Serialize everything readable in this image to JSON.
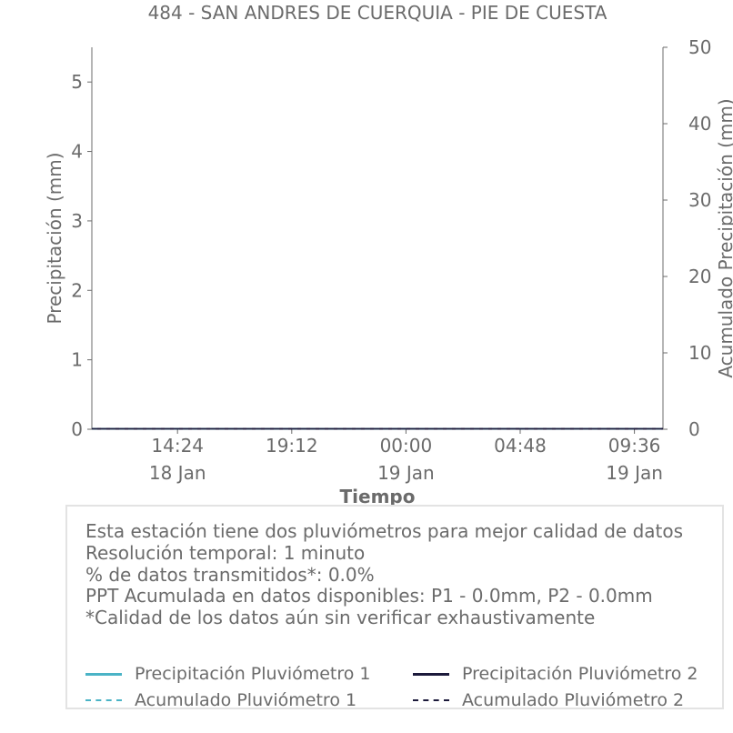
{
  "chart_data": {
    "type": "line",
    "title": "484 - SAN ANDRES DE CUERQUIA - PIE DE CUESTA",
    "xlabel": "Tiempo",
    "ylabel": "Precipitación (mm)",
    "y2label": "Acumulado Precipitación (mm)",
    "ylim": [
      0,
      5.5
    ],
    "y2lim": [
      0,
      50
    ],
    "yticks": [
      "0",
      "1",
      "2",
      "3",
      "4",
      "5"
    ],
    "y2ticks": [
      "0",
      "10",
      "20",
      "30",
      "40",
      "50"
    ],
    "xticks": [
      {
        "time": "14:24",
        "date": "18 Jan"
      },
      {
        "time": "19:12",
        "date": ""
      },
      {
        "time": "00:00",
        "date": "19 Jan"
      },
      {
        "time": "04:48",
        "date": ""
      },
      {
        "time": "09:36",
        "date": "19 Jan"
      }
    ],
    "xrange": [
      "2024-01-18 10:48",
      "2024-01-19 10:48"
    ],
    "grid": false,
    "series": [
      {
        "name": "Precipitación Pluviómetro 1",
        "axis": "left",
        "style": "solid",
        "color": "#4ab3c6",
        "x": [
          "18 Jan 10:48",
          "19 Jan 10:48"
        ],
        "values": [
          0,
          0
        ]
      },
      {
        "name": "Precipitación Pluviómetro 2",
        "axis": "left",
        "style": "solid",
        "color": "#1c1a3b",
        "x": [
          "18 Jan 10:48",
          "19 Jan 10:48"
        ],
        "values": [
          0,
          0
        ]
      },
      {
        "name": "Acumulado Pluviómetro 1",
        "axis": "right",
        "style": "dashed",
        "color": "#4ab3c6",
        "x": [
          "18 Jan 10:48",
          "19 Jan 10:48"
        ],
        "values": [
          0,
          0
        ]
      },
      {
        "name": "Acumulado Pluviómetro 2",
        "axis": "right",
        "style": "dashed",
        "color": "#1c1a3b",
        "x": [
          "18 Jan 10:48",
          "19 Jan 10:48"
        ],
        "values": [
          0,
          0
        ]
      }
    ]
  },
  "info": {
    "lines": [
      "Esta estación tiene dos pluviómetros para mejor calidad de datos",
      "Resolución temporal: 1 minuto",
      "% de datos transmitidos*: 0.0%",
      "PPT Acumulada en datos disponibles: P1 - 0.0mm, P2 - 0.0mm",
      "*Calidad de los datos aún sin verificar exhaustivamente"
    ]
  },
  "legend": {
    "placement": "bottom",
    "items": [
      {
        "label": "Precipitación Pluviómetro 1",
        "style": "solid",
        "color": "#4ab3c6"
      },
      {
        "label": "Precipitación Pluviómetro 2",
        "style": "solid",
        "color": "#1c1a3b"
      },
      {
        "label": "Acumulado Pluviómetro 1",
        "style": "dashed",
        "color": "#4ab3c6"
      },
      {
        "label": "Acumulado Pluviómetro 2",
        "style": "dashed",
        "color": "#1c1a3b"
      }
    ]
  },
  "colors": {
    "text": "#6b6b6b",
    "axis": "#6b6b6b",
    "box_border": "#e3e3e3"
  }
}
